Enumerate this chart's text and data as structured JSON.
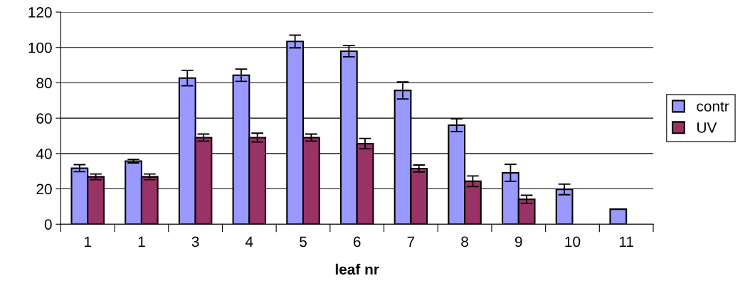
{
  "chart_data": {
    "type": "bar",
    "xlabel": "leaf nr",
    "categories": [
      "1",
      "1",
      "3",
      "4",
      "5",
      "6",
      "7",
      "8",
      "9",
      "10",
      "11"
    ],
    "series": [
      {
        "name": "contr",
        "color": "#9999ff",
        "values": [
          31.7,
          35.7,
          82.7,
          84.3,
          103.4,
          97.9,
          75.7,
          56,
          29.1,
          19.7,
          8.5
        ],
        "errors": [
          2,
          1,
          4.4,
          3.5,
          3.6,
          3.2,
          4.8,
          3.6,
          4.8,
          3,
          null
        ]
      },
      {
        "name": "UV",
        "color": "#993366",
        "values": [
          26.8,
          26.8,
          49,
          49,
          49,
          45.6,
          31.5,
          24.3,
          14.1,
          null,
          null
        ],
        "errors": [
          1.6,
          1.6,
          2,
          2.5,
          2,
          2.9,
          2,
          3,
          2.3,
          null,
          null
        ]
      }
    ],
    "ylim": [
      0,
      120
    ],
    "yticks": [
      0,
      20,
      40,
      60,
      80,
      100,
      120
    ],
    "grid": "y",
    "legend": "right"
  }
}
